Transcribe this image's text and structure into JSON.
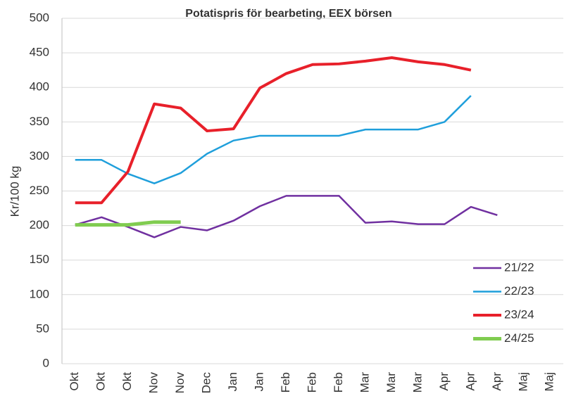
{
  "chart_data": {
    "type": "line",
    "title": "Potatispris för bearbeting, EEX börsen",
    "y_label": "Kr/100 kg",
    "categories": [
      "Okt",
      "Okt",
      "Okt",
      "Nov",
      "Nov",
      "Dec",
      "Jan",
      "Jan",
      "Feb",
      "Feb",
      "Feb",
      "Mar",
      "Mar",
      "Mar",
      "Apr",
      "Apr",
      "Apr",
      "Maj",
      "Maj"
    ],
    "series": [
      {
        "name": "21/22",
        "color": "#7030a0",
        "width": 2.5,
        "values": [
          201,
          212,
          198,
          183,
          198,
          193,
          207,
          228,
          243,
          243,
          243,
          204,
          206,
          202,
          202,
          227,
          215,
          null,
          null
        ]
      },
      {
        "name": "22/23",
        "color": "#1f9fdb",
        "width": 2.5,
        "values": [
          295,
          295,
          275,
          261,
          276,
          304,
          323,
          330,
          330,
          330,
          330,
          339,
          339,
          339,
          350,
          388,
          null,
          null,
          null
        ]
      },
      {
        "name": "23/24",
        "color": "#e8202a",
        "width": 4,
        "values": [
          233,
          233,
          278,
          376,
          370,
          337,
          340,
          399,
          420,
          433,
          434,
          438,
          443,
          437,
          433,
          425,
          null,
          null,
          null
        ]
      },
      {
        "name": "24/25",
        "color": "#80cc50",
        "width": 5,
        "values": [
          201,
          201,
          201,
          205,
          205,
          null,
          null,
          null,
          null,
          null,
          null,
          null,
          null,
          null,
          null,
          null,
          null,
          null,
          null
        ]
      }
    ],
    "ylim": [
      0,
      500
    ],
    "yticks": [
      0,
      50,
      100,
      150,
      200,
      250,
      300,
      350,
      400,
      450,
      500
    ],
    "grid": true
  }
}
